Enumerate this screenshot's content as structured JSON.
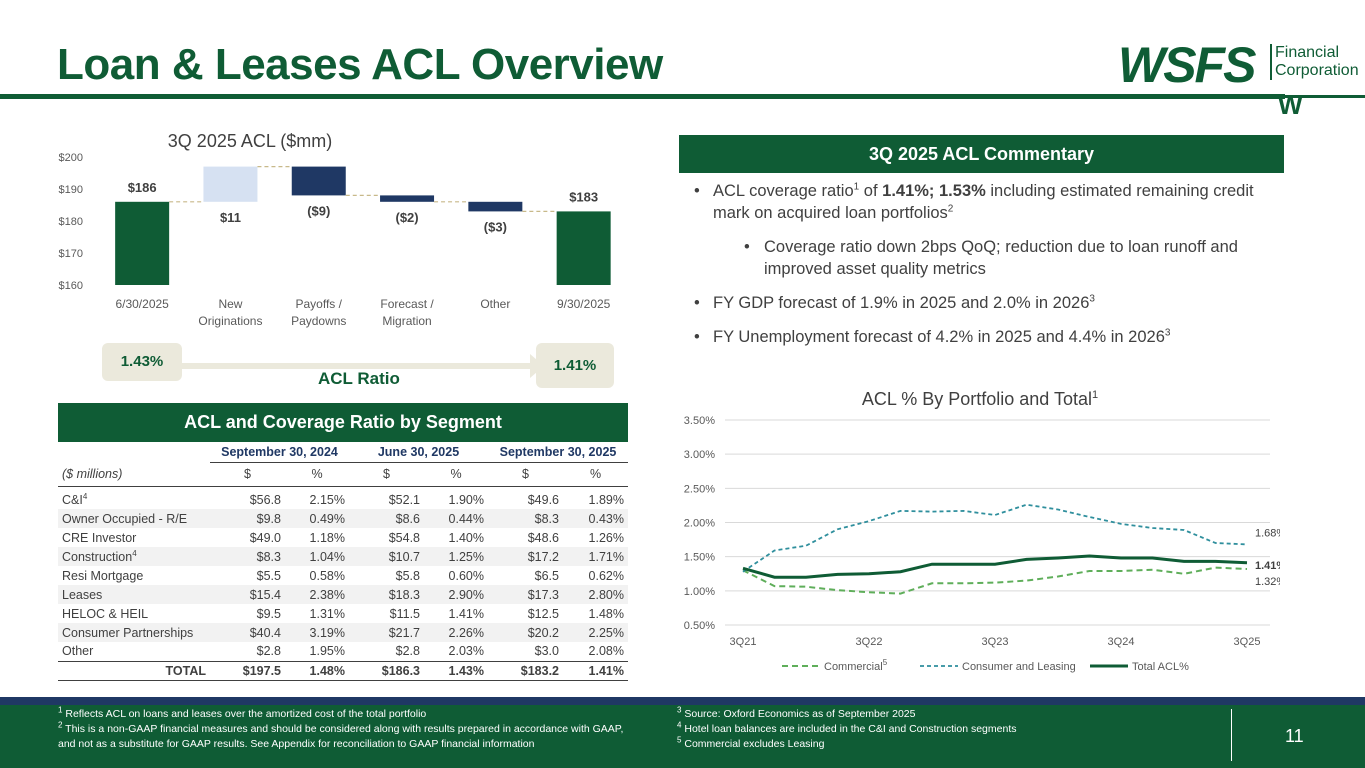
{
  "page": {
    "title": "Loan & Leases ACL Overview",
    "page_number": "11"
  },
  "logo": {
    "main": "WSFS",
    "line1": "Financial",
    "line2": "Corporation",
    "mark": "W"
  },
  "colors": {
    "brand_green": "#0f5c35",
    "navy": "#1f3864",
    "light_blue": "#d6e1f2",
    "beige": "#ebe9dc",
    "light_green": "#5fae5a",
    "teal": "#2f8f9d"
  },
  "acl_ratio": {
    "start": "1.43%",
    "end": "1.41%",
    "label": "ACL Ratio"
  },
  "commentary": {
    "header": "3Q 2025 ACL Commentary",
    "b1": {
      "t1": "ACL coverage ratio",
      "sup1": "1",
      "t2": " of ",
      "bold": "1.41%; 1.53%",
      "t3": " including estimated remaining credit mark on acquired loan portfolios",
      "sup2": "2"
    },
    "b2": "Coverage ratio down 2bps QoQ; reduction due to loan runoff and improved asset quality metrics",
    "b3": {
      "text": "FY GDP forecast of 1.9% in 2025 and 2.0% in 2026",
      "sup": "3"
    },
    "b4": {
      "text": "FY Unemployment forecast of 4.2% in 2025 and 4.4% in 2026",
      "sup": "3"
    }
  },
  "segment_table": {
    "header": "ACL and Coverage Ratio by Segment",
    "periods": [
      "September 30, 2024",
      "June 30, 2025",
      "September 30, 2025"
    ],
    "units_label": "($ millions)",
    "col_dollar": "$",
    "col_pct": "%",
    "rows": [
      {
        "name": "C&I",
        "sup": "4",
        "v": [
          "$56.8",
          "2.15%",
          "$52.1",
          "1.90%",
          "$49.6",
          "1.89%"
        ]
      },
      {
        "name": "Owner Occupied - R/E",
        "sup": "",
        "v": [
          "$9.8",
          "0.49%",
          "$8.6",
          "0.44%",
          "$8.3",
          "0.43%"
        ]
      },
      {
        "name": "CRE Investor",
        "sup": "",
        "v": [
          "$49.0",
          "1.18%",
          "$54.8",
          "1.40%",
          "$48.6",
          "1.26%"
        ]
      },
      {
        "name": "Construction",
        "sup": "4",
        "v": [
          "$8.3",
          "1.04%",
          "$10.7",
          "1.25%",
          "$17.2",
          "1.71%"
        ]
      },
      {
        "name": "Resi Mortgage",
        "sup": "",
        "v": [
          "$5.5",
          "0.58%",
          "$5.8",
          "0.60%",
          "$6.5",
          "0.62%"
        ]
      },
      {
        "name": "Leases",
        "sup": "",
        "v": [
          "$15.4",
          "2.38%",
          "$18.3",
          "2.90%",
          "$17.3",
          "2.80%"
        ]
      },
      {
        "name": "HELOC & HEIL",
        "sup": "",
        "v": [
          "$9.5",
          "1.31%",
          "$11.5",
          "1.41%",
          "$12.5",
          "1.48%"
        ]
      },
      {
        "name": "Consumer Partnerships",
        "sup": "",
        "v": [
          "$40.4",
          "3.19%",
          "$21.7",
          "2.26%",
          "$20.2",
          "2.25%"
        ]
      },
      {
        "name": "Other",
        "sup": "",
        "v": [
          "$2.8",
          "1.95%",
          "$2.8",
          "2.03%",
          "$3.0",
          "2.08%"
        ]
      }
    ],
    "total": {
      "name": "TOTAL",
      "v": [
        "$197.5",
        "1.48%",
        "$186.3",
        "1.43%",
        "$183.2",
        "1.41%"
      ]
    }
  },
  "chart_data": [
    {
      "type": "waterfall",
      "title": "3Q 2025 ACL ($mm)",
      "categories": [
        "6/30/2025",
        "New Originations",
        "Payoffs / Paydowns",
        "Forecast / Migration",
        "Other",
        "9/30/2025"
      ],
      "values": [
        186,
        11,
        -9,
        -2,
        -3,
        183
      ],
      "labels": [
        "$186",
        "$11",
        "($9)",
        "($2)",
        "($3)",
        "$183"
      ],
      "kinds": [
        "total",
        "increase",
        "decrease",
        "decrease",
        "decrease",
        "total"
      ],
      "ylim": [
        160,
        200
      ],
      "yticks": [
        160,
        170,
        180,
        190,
        200
      ],
      "ytick_labels": [
        "$160",
        "$170",
        "$180",
        "$190",
        "$200"
      ]
    },
    {
      "type": "line",
      "title": "ACL % By Portfolio and Total",
      "title_sup": "1",
      "x": [
        "3Q21",
        "4Q21",
        "1Q22",
        "2Q22",
        "3Q22",
        "4Q22",
        "1Q23",
        "2Q23",
        "3Q23",
        "4Q23",
        "1Q24",
        "2Q24",
        "3Q24",
        "4Q24",
        "1Q25",
        "2Q25",
        "3Q25"
      ],
      "xtick_labels": [
        "3Q21",
        "",
        "",
        "",
        "3Q22",
        "",
        "",
        "",
        "3Q23",
        "",
        "",
        "",
        "3Q24",
        "",
        "",
        "",
        "3Q25"
      ],
      "ylim": [
        0.5,
        3.5
      ],
      "yticks": [
        0.5,
        1.0,
        1.5,
        2.0,
        2.5,
        3.0,
        3.5
      ],
      "ytick_labels": [
        "0.50%",
        "1.00%",
        "1.50%",
        "2.00%",
        "2.50%",
        "3.00%",
        "3.50%"
      ],
      "series": [
        {
          "name": "Commercial",
          "legend_sup": "5",
          "style": "dashed",
          "values": [
            1.3,
            1.07,
            1.06,
            1.01,
            0.98,
            0.96,
            1.11,
            1.11,
            1.12,
            1.15,
            1.21,
            1.29,
            1.29,
            1.31,
            1.25,
            1.34,
            1.32
          ],
          "end_label": "1.32%"
        },
        {
          "name": "Consumer and Leasing",
          "legend_sup": "",
          "style": "dashed",
          "values": [
            1.28,
            1.59,
            1.66,
            1.9,
            2.02,
            2.17,
            2.16,
            2.17,
            2.11,
            2.26,
            2.19,
            2.08,
            1.98,
            1.92,
            1.89,
            1.7,
            1.68
          ],
          "end_label": "1.68%"
        },
        {
          "name": "Total ACL%",
          "legend_sup": "",
          "style": "solid",
          "values": [
            1.33,
            1.2,
            1.2,
            1.24,
            1.25,
            1.28,
            1.39,
            1.39,
            1.39,
            1.46,
            1.48,
            1.51,
            1.48,
            1.48,
            1.43,
            1.43,
            1.41
          ],
          "end_label": "1.41%"
        }
      ]
    }
  ],
  "footnotes": {
    "left": [
      {
        "sup": "1",
        "text": " Reflects ACL on loans and leases over the amortized cost of the total portfolio"
      },
      {
        "sup": "2",
        "text": " This is a non-GAAP financial measures and should be considered along with results prepared in accordance with GAAP, and not as a substitute for GAAP results.  See Appendix for reconciliation to GAAP financial information"
      }
    ],
    "right": [
      {
        "sup": "3",
        "text": " Source: Oxford Economics as of September 2025"
      },
      {
        "sup": "4",
        "text": " Hotel loan balances are included in the C&I and Construction segments"
      },
      {
        "sup": "5",
        "text": " Commercial excludes Leasing"
      }
    ]
  }
}
